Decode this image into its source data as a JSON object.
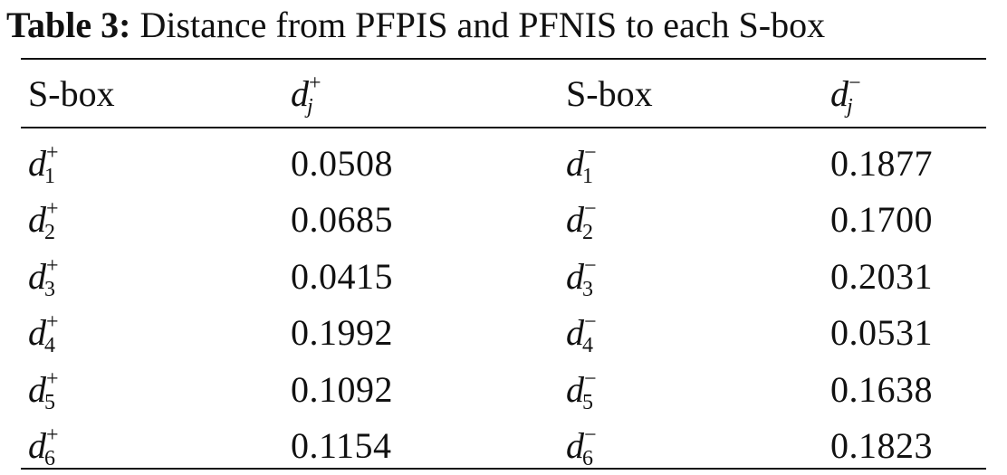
{
  "caption": {
    "label": "Table 3:",
    "text": "Distance from PFPIS and PFNIS to each S-box"
  },
  "header": {
    "col1": "S-box",
    "col2": {
      "base": "d",
      "sup": "+",
      "sub": "j"
    },
    "col3": "S-box",
    "col4": {
      "base": "d",
      "sup": "−",
      "sub": "j"
    }
  },
  "rows": [
    {
      "left_sym": {
        "base": "d",
        "sup": "+",
        "sub": "1"
      },
      "left_val": "0.0508",
      "right_sym": {
        "base": "d",
        "sup": "−",
        "sub": "1"
      },
      "right_val": "0.1877"
    },
    {
      "left_sym": {
        "base": "d",
        "sup": "+",
        "sub": "2"
      },
      "left_val": "0.0685",
      "right_sym": {
        "base": "d",
        "sup": "−",
        "sub": "2"
      },
      "right_val": "0.1700"
    },
    {
      "left_sym": {
        "base": "d",
        "sup": "+",
        "sub": "3"
      },
      "left_val": "0.0415",
      "right_sym": {
        "base": "d",
        "sup": "−",
        "sub": "3"
      },
      "right_val": "0.2031"
    },
    {
      "left_sym": {
        "base": "d",
        "sup": "+",
        "sub": "4"
      },
      "left_val": "0.1992",
      "right_sym": {
        "base": "d",
        "sup": "−",
        "sub": "4"
      },
      "right_val": "0.0531"
    },
    {
      "left_sym": {
        "base": "d",
        "sup": "+",
        "sub": "5"
      },
      "left_val": "0.1092",
      "right_sym": {
        "base": "d",
        "sup": "−",
        "sub": "5"
      },
      "right_val": "0.1638"
    },
    {
      "left_sym": {
        "base": "d",
        "sup": "+",
        "sub": "6"
      },
      "left_val": "0.1154",
      "right_sym": {
        "base": "d",
        "sup": "−",
        "sub": "6"
      },
      "right_val": "0.1823"
    }
  ]
}
